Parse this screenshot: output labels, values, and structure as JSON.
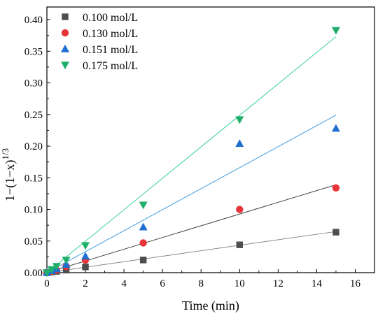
{
  "chart_data": {
    "type": "scatter",
    "xlabel": "Time (min)",
    "ylabel": "1−(1−x)",
    "ylabel_superscript": "1/3",
    "xlim": [
      0,
      17
    ],
    "ylim": [
      0,
      0.42
    ],
    "x_ticks": [
      "0",
      "2",
      "4",
      "6",
      "8",
      "10",
      "12",
      "14",
      "16"
    ],
    "y_ticks": [
      "0.00",
      "0.05",
      "0.10",
      "0.15",
      "0.20",
      "0.25",
      "0.30",
      "0.35",
      "0.40"
    ],
    "grid": false,
    "legend_position": "top-left",
    "series": [
      {
        "name": "0.100 mol/L",
        "marker": "square",
        "color": "#4d4d4d",
        "line_color": "#888888",
        "x": [
          0,
          0.25,
          0.5,
          1,
          2,
          5,
          10,
          15
        ],
        "y": [
          0.0,
          0.001,
          0.002,
          0.004,
          0.009,
          0.02,
          0.044,
          0.064
        ],
        "fit": {
          "x": [
            0,
            15
          ],
          "y": [
            0,
            0.065
          ]
        }
      },
      {
        "name": "0.130 mol/L",
        "marker": "circle",
        "color": "#e8353a",
        "line_color": "#444444",
        "x": [
          0,
          0.25,
          0.5,
          1,
          2,
          5,
          10,
          15
        ],
        "y": [
          0.0,
          0.002,
          0.004,
          0.01,
          0.02,
          0.047,
          0.1,
          0.134
        ],
        "fit": {
          "x": [
            0,
            15
          ],
          "y": [
            0,
            0.139
          ]
        }
      },
      {
        "name": "0.151 mol/L",
        "marker": "triangle-up",
        "color": "#1f6fd1",
        "line_color": "#3f9be0",
        "x": [
          0,
          0.25,
          0.5,
          1,
          2,
          5,
          10,
          15
        ],
        "y": [
          0.0,
          0.003,
          0.006,
          0.013,
          0.026,
          0.072,
          0.204,
          0.228
        ],
        "fit": {
          "x": [
            0,
            15
          ],
          "y": [
            0,
            0.249
          ]
        }
      },
      {
        "name": "0.175 mol/L",
        "marker": "triangle-down",
        "color": "#1fae6a",
        "line_color": "#3ccf9a",
        "x": [
          0,
          0.25,
          0.5,
          1,
          2,
          5,
          10,
          15
        ],
        "y": [
          0.0,
          0.005,
          0.01,
          0.02,
          0.043,
          0.107,
          0.242,
          0.383
        ],
        "fit": {
          "x": [
            0,
            15
          ],
          "y": [
            0,
            0.373
          ]
        }
      }
    ]
  }
}
